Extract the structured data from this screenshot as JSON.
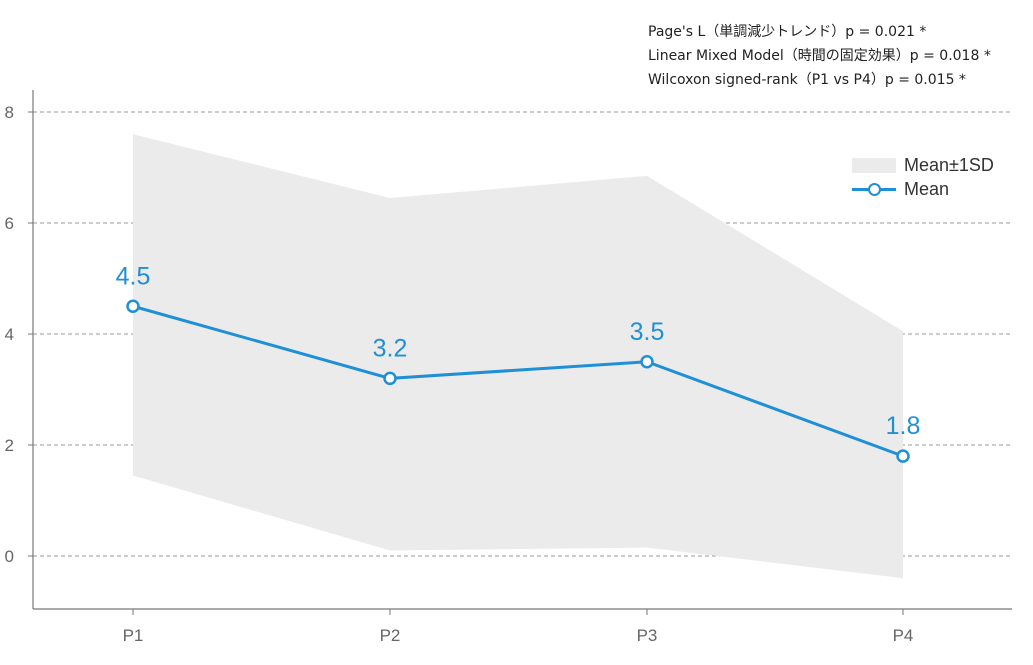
{
  "stats": [
    "Page's L（単調減少トレンド）p = 0.021 *",
    "Linear Mixed Model（時間の固定効果）p = 0.018 *",
    "Wilcoxon signed-rank（P1 vs P4）p = 0.015 *"
  ],
  "legend": {
    "band_label": "Mean±1SD",
    "line_label": "Mean"
  },
  "colors": {
    "mean_line": "#1f8fd6",
    "band": "#ebebeb",
    "grid": "#9a9a9a",
    "axis": "#777777",
    "tick_text": "#666666"
  },
  "chart_data": {
    "type": "line",
    "categories": [
      "P1",
      "P2",
      "P3",
      "P4"
    ],
    "series": [
      {
        "name": "Mean",
        "values": [
          4.5,
          3.2,
          3.5,
          1.8
        ],
        "labels": [
          "4.5",
          "3.2",
          "3.5",
          "1.8"
        ]
      }
    ],
    "band": {
      "name": "Mean±1SD",
      "upper": [
        7.6,
        6.45,
        6.85,
        4.05
      ],
      "lower": [
        1.45,
        0.1,
        0.15,
        -0.4
      ]
    },
    "yticks": [
      0,
      2,
      4,
      6,
      8
    ],
    "ylim": [
      -0.95,
      8.6
    ],
    "grid": "horizontal-dashed",
    "legend_position": "upper-right"
  }
}
